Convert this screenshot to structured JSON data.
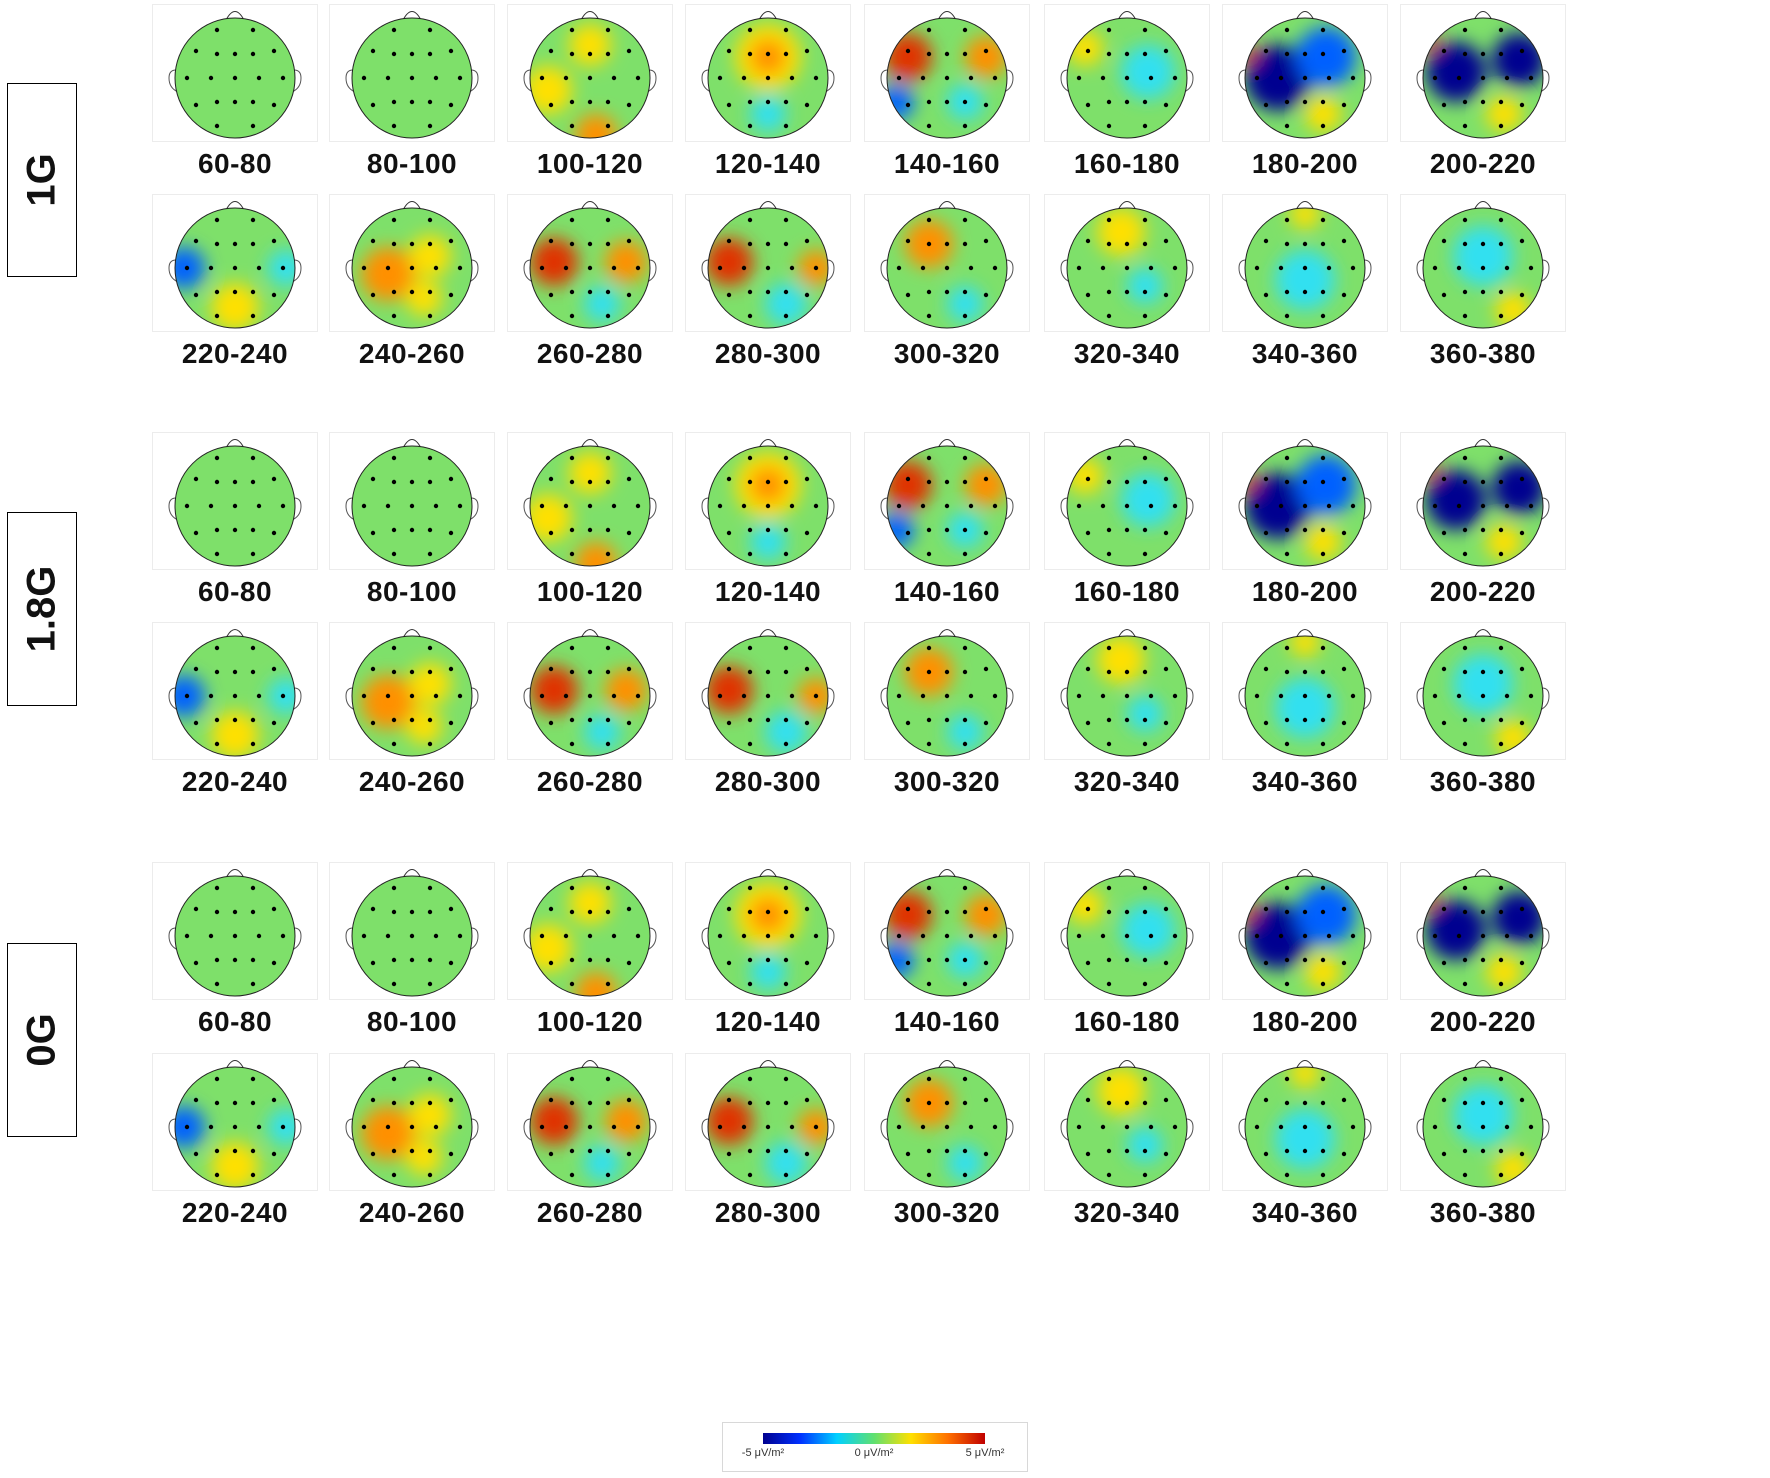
{
  "conditions": [
    {
      "label": "1G",
      "rows": [
        [
          "60-80",
          "80-100",
          "100-120",
          "120-140",
          "140-160",
          "160-180",
          "180-200",
          "200-220"
        ],
        [
          "220-240",
          "240-260",
          "260-280",
          "280-300",
          "300-320",
          "320-340",
          "340-360",
          "360-380"
        ]
      ]
    },
    {
      "label": "1.8G",
      "rows": [
        [
          "60-80",
          "80-100",
          "100-120",
          "120-140",
          "140-160",
          "160-180",
          "180-200",
          "200-220"
        ],
        [
          "220-240",
          "240-260",
          "260-280",
          "280-300",
          "300-320",
          "320-340",
          "340-360",
          "360-380"
        ]
      ]
    },
    {
      "label": "0G",
      "rows": [
        [
          "60-80",
          "80-100",
          "100-120",
          "120-140",
          "140-160",
          "160-180",
          "180-200",
          "200-220"
        ],
        [
          "220-240",
          "240-260",
          "260-280",
          "280-300",
          "300-320",
          "320-340",
          "340-360",
          "360-380"
        ]
      ]
    }
  ],
  "colorbar": {
    "min_label": "-5 μV/m²",
    "mid_label": "0 μV/m²",
    "max_label": "5 μV/m²",
    "colors": [
      "#00008f",
      "#0030ff",
      "#00d0ff",
      "#60e070",
      "#ffe000",
      "#ff7000",
      "#c00000"
    ]
  }
}
